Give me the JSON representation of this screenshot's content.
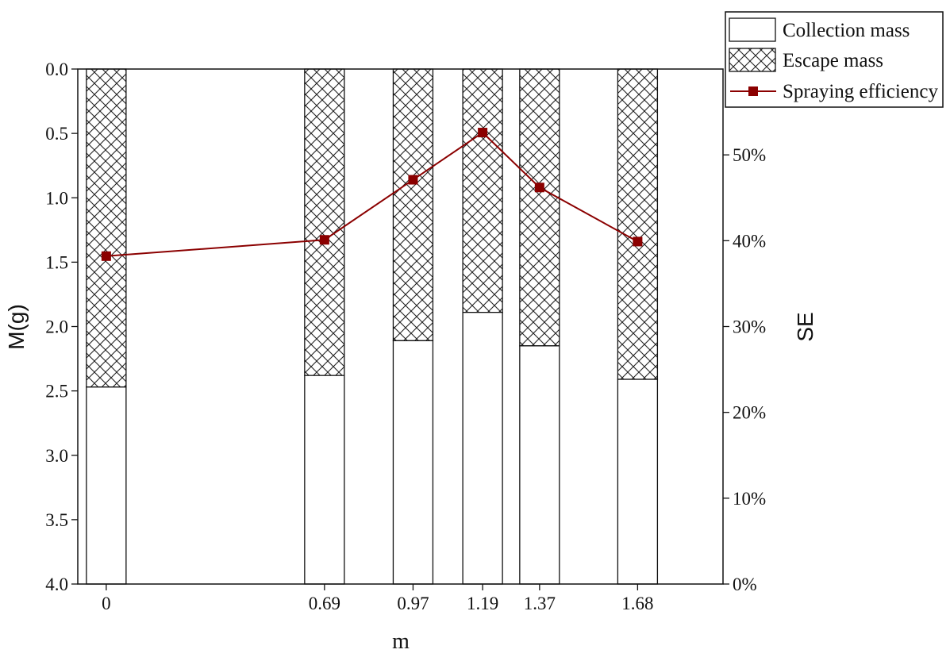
{
  "chart_data": {
    "type": "bar",
    "bar_mode": "stacked",
    "x": [
      0,
      0.69,
      0.97,
      1.19,
      1.37,
      1.68
    ],
    "x_labels": [
      "0",
      "0.69",
      "0.97",
      "1.19",
      "1.37",
      "1.68"
    ],
    "xlabel": "m",
    "ylabel": "M(g)",
    "ylim": [
      4.0,
      0.0
    ],
    "y_inverted": true,
    "y_ticks": [
      "0.0",
      "0.5",
      "1.0",
      "1.5",
      "2.0",
      "2.5",
      "3.0",
      "3.5",
      "4.0"
    ],
    "y2label": "SE",
    "y2lim": [
      0,
      60
    ],
    "y2_unit": "%",
    "y2_ticks": [
      "0%",
      "10%",
      "20%",
      "30%",
      "40%",
      "50%"
    ],
    "series": [
      {
        "name": "Collection mass",
        "kind": "bar",
        "pattern": "plain",
        "values": [
          1.53,
          1.62,
          1.89,
          2.11,
          1.85,
          1.59
        ]
      },
      {
        "name": "Escape mass",
        "kind": "bar",
        "pattern": "crosshatch",
        "values": [
          2.47,
          2.38,
          2.11,
          1.89,
          2.15,
          2.41
        ]
      },
      {
        "name": "Spraying efficiency",
        "kind": "line",
        "axis": "right",
        "color": "#8b0000",
        "values": [
          38.2,
          40.1,
          47.1,
          52.6,
          46.2,
          39.9
        ]
      }
    ],
    "legend_position": "top-right",
    "grid": false
  }
}
